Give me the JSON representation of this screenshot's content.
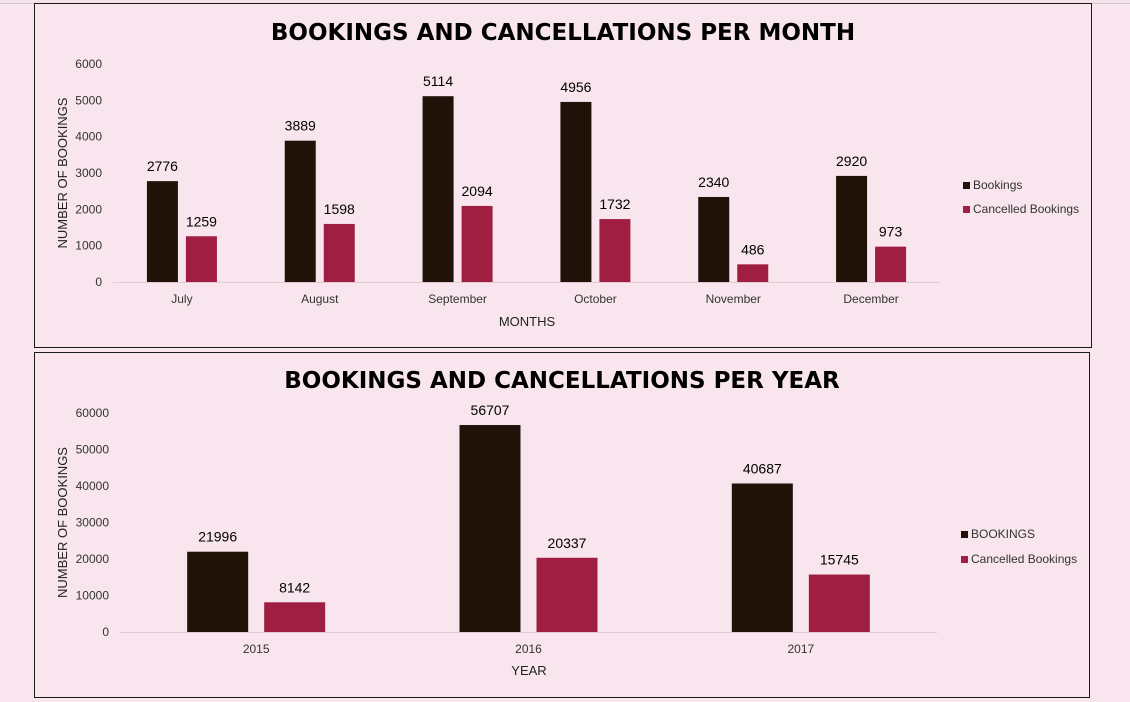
{
  "chart_data": [
    {
      "type": "bar",
      "title": "BOOKINGS AND CANCELLATIONS PER MONTH",
      "xlabel": "MONTHS",
      "ylabel": "NUMBER OF BOOKINGS",
      "categories": [
        "July",
        "August",
        "September",
        "October",
        "November",
        "December"
      ],
      "series": [
        {
          "name": "Bookings",
          "color": "#201208",
          "values": [
            2776,
            3889,
            5114,
            4956,
            2340,
            2920
          ]
        },
        {
          "name": "Cancelled Bookings",
          "color": "#a01e42",
          "values": [
            1259,
            1598,
            2094,
            1732,
            486,
            973
          ]
        }
      ],
      "ylim": [
        0,
        6000
      ],
      "yticks": [
        "0",
        "1000",
        "2000",
        "3000",
        "4000",
        "5000",
        "6000"
      ],
      "grid": false,
      "legend": "right"
    },
    {
      "type": "bar",
      "title": "BOOKINGS AND CANCELLATIONS PER YEAR",
      "xlabel": "YEAR",
      "ylabel": "NUMBER OF BOOKINGS",
      "categories": [
        "2015",
        "2016",
        "2017"
      ],
      "series": [
        {
          "name": "BOOKINGS",
          "color": "#201208",
          "values": [
            21996,
            56707,
            40687
          ]
        },
        {
          "name": "Cancelled Bookings",
          "color": "#a01e42",
          "values": [
            8142,
            20337,
            15745
          ]
        }
      ],
      "ylim": [
        0,
        60000
      ],
      "yticks": [
        "0",
        "10000",
        "20000",
        "30000",
        "40000",
        "50000",
        "60000"
      ],
      "grid": false,
      "legend": "right"
    }
  ]
}
